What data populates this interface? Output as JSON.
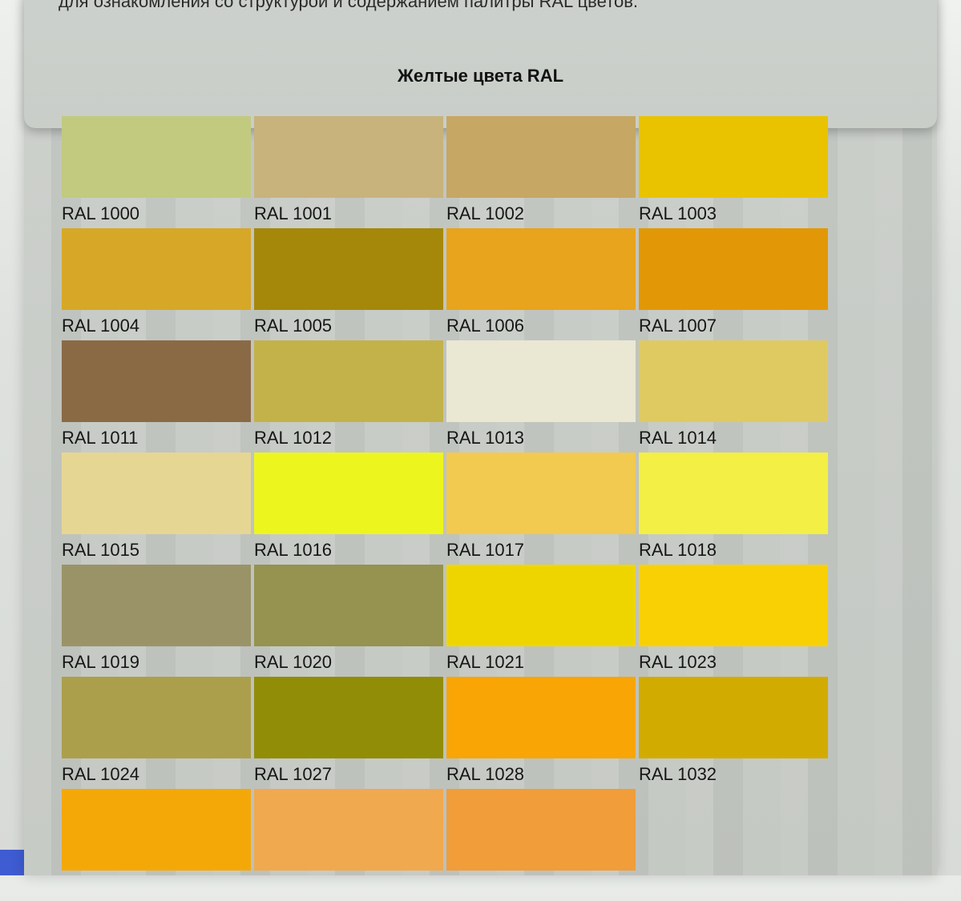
{
  "page": {
    "intro_text": "для ознакомления со структурой и содержанием палитры RAL цветов.",
    "section_title": "Желтые цвета RAL"
  },
  "theme": {
    "content_background": "#c7cbc6",
    "card_background": "#c9cec9",
    "label_text_color": "#161616",
    "corner_accent_blue": "#3f5cd2"
  },
  "palette": {
    "swatches": [
      {
        "code": "RAL 1000",
        "color": "#c2ca80"
      },
      {
        "code": "RAL 1001",
        "color": "#c8b37d"
      },
      {
        "code": "RAL 1002",
        "color": "#c6a763"
      },
      {
        "code": "RAL 1003",
        "color": "#e9c300"
      },
      {
        "code": "RAL 1004",
        "color": "#d7a827"
      },
      {
        "code": "RAL 1005",
        "color": "#a5880a"
      },
      {
        "code": "RAL 1006",
        "color": "#e8a41c"
      },
      {
        "code": "RAL 1007",
        "color": "#e29806"
      },
      {
        "code": "RAL 1011",
        "color": "#8a6a45"
      },
      {
        "code": "RAL 1012",
        "color": "#c3b24a"
      },
      {
        "code": "RAL 1013",
        "color": "#eae7d3"
      },
      {
        "code": "RAL 1014",
        "color": "#dfca62"
      },
      {
        "code": "RAL 1015",
        "color": "#e6d694"
      },
      {
        "code": "RAL 1016",
        "color": "#edf51f"
      },
      {
        "code": "RAL 1017",
        "color": "#f1ca4f"
      },
      {
        "code": "RAL 1018",
        "color": "#f3ef44"
      },
      {
        "code": "RAL 1019",
        "color": "#9b9368"
      },
      {
        "code": "RAL 1020",
        "color": "#95934f"
      },
      {
        "code": "RAL 1021",
        "color": "#efd500"
      },
      {
        "code": "RAL 1023",
        "color": "#f9d003"
      },
      {
        "code": "RAL 1024",
        "color": "#ab9f4c"
      },
      {
        "code": "RAL 1027",
        "color": "#918d07"
      },
      {
        "code": "RAL 1028",
        "color": "#f8a505"
      },
      {
        "code": "RAL 1032",
        "color": "#d2ab01"
      },
      {
        "code": "",
        "color": "#f4a808"
      },
      {
        "code": "",
        "color": "#f0a94f"
      },
      {
        "code": "",
        "color": "#f09d3a"
      }
    ]
  }
}
